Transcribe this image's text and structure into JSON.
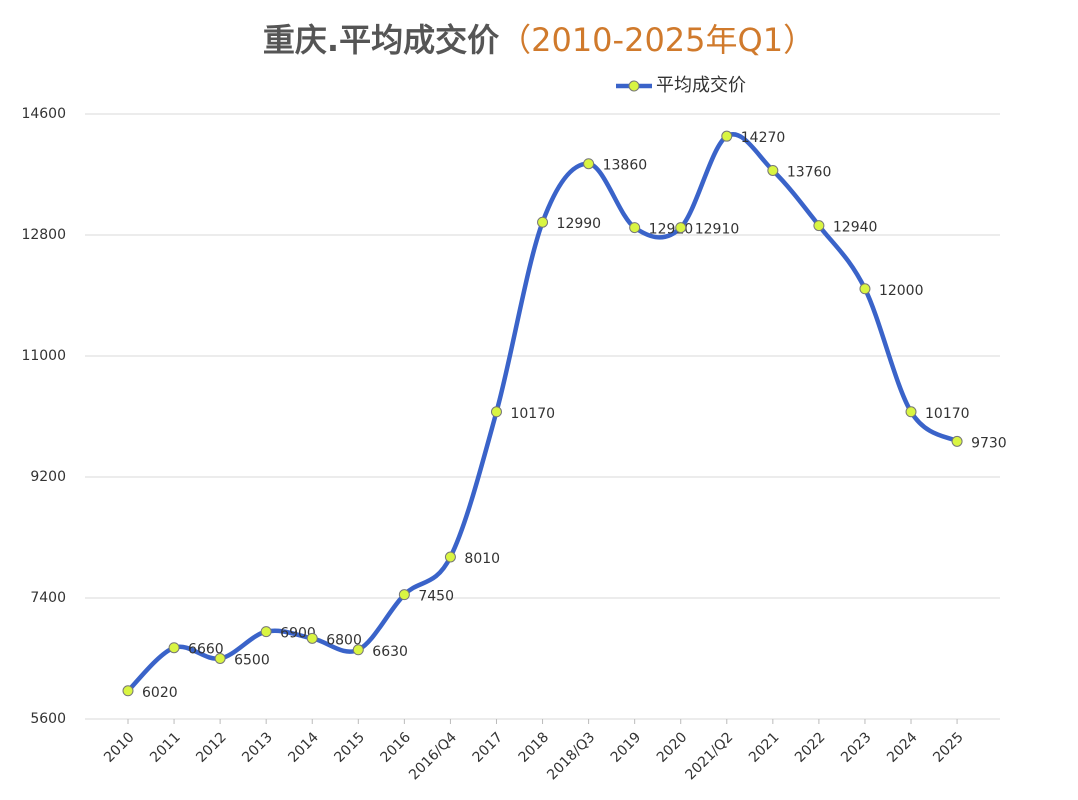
{
  "chart_data": {
    "type": "line",
    "title": "重庆.平均成交价",
    "subtitle": "（2010-2025年Q1）",
    "categories": [
      "2010",
      "2011",
      "2012",
      "2013",
      "2014",
      "2015",
      "2016",
      "2016/Q4",
      "2017",
      "2018",
      "2018/Q3",
      "2019",
      "2020",
      "2021/Q2",
      "2021",
      "2022",
      "2023",
      "2024",
      "2025"
    ],
    "series": [
      {
        "name": "平均成交价",
        "color": "#3a63c9",
        "marker_color": "#d9f542",
        "values": [
          6020,
          6660,
          6500,
          6900,
          6800,
          6630,
          7450,
          8010,
          10170,
          12990,
          13860,
          12910,
          12910,
          14270,
          13760,
          12940,
          12000,
          10170,
          9730
        ]
      }
    ],
    "ylim": [
      5600,
      14600
    ],
    "yticks": [
      5600,
      7400,
      9200,
      11000,
      12800,
      14600
    ],
    "grid": true,
    "smooth": true,
    "legend": "top"
  }
}
